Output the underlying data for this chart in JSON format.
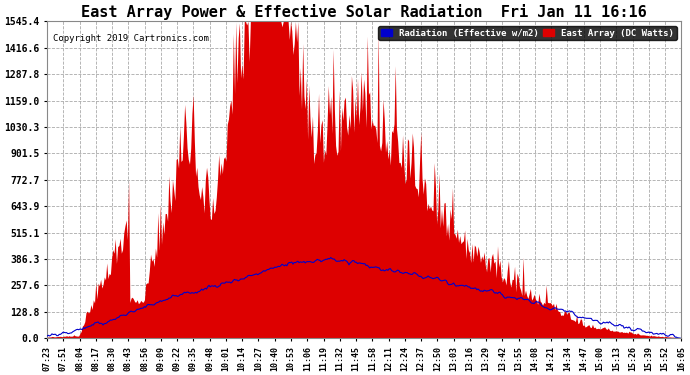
{
  "title": "East Array Power & Effective Solar Radiation  Fri Jan 11 16:16",
  "copyright": "Copyright 2019 Cartronics.com",
  "legend_radiation": "Radiation (Effective w/m2)",
  "legend_array": "East Array (DC Watts)",
  "ymax": 1545.4,
  "yticks": [
    0.0,
    128.8,
    257.6,
    386.3,
    515.1,
    643.9,
    772.7,
    901.5,
    1030.3,
    1159.0,
    1287.8,
    1416.6,
    1545.4
  ],
  "background_color": "#ffffff",
  "plot_bg_color": "#ffffff",
  "grid_color": "#aaaaaa",
  "red_color": "#dd0000",
  "blue_color": "#0000cc",
  "title_fontsize": 11,
  "x_tick_labels": [
    "07:23",
    "07:51",
    "08:04",
    "08:17",
    "08:30",
    "08:43",
    "08:56",
    "09:09",
    "09:22",
    "09:35",
    "09:48",
    "10:01",
    "10:14",
    "10:27",
    "10:40",
    "10:53",
    "11:06",
    "11:19",
    "11:32",
    "11:45",
    "11:58",
    "12:11",
    "12:24",
    "12:37",
    "12:50",
    "13:03",
    "13:16",
    "13:29",
    "13:42",
    "13:55",
    "14:08",
    "14:21",
    "14:34",
    "14:47",
    "15:00",
    "15:13",
    "15:26",
    "15:39",
    "15:52",
    "16:05"
  ]
}
